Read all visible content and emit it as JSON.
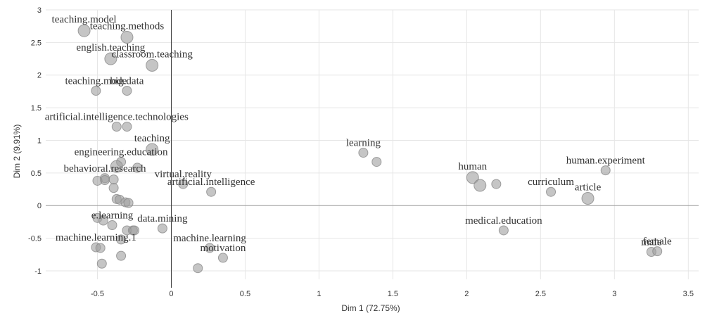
{
  "chart_data": {
    "type": "scatter",
    "xlabel": "Dim 1 (72.75%)",
    "ylabel": "Dim 2 (9.91%)",
    "xlim": [
      -0.85,
      3.57
    ],
    "ylim": [
      -1.13,
      3.0
    ],
    "xticks": [
      "-0.5",
      "0",
      "0.5",
      "1",
      "1.5",
      "2",
      "2.5",
      "3",
      "3.5"
    ],
    "yticks": [
      "3",
      "2.5",
      "2",
      "1.5",
      "1",
      "0.5",
      "0",
      "-0.5",
      "-1"
    ],
    "xtick_values": [
      -0.5,
      0,
      0.5,
      1,
      1.5,
      2,
      2.5,
      3,
      3.5
    ],
    "ytick_values": [
      3,
      2.5,
      2,
      1.5,
      1,
      0.5,
      0,
      -0.5,
      -1
    ],
    "grid": true,
    "points": [
      {
        "x": -0.59,
        "y": 2.68,
        "size": 2,
        "label": "teaching.model"
      },
      {
        "x": -0.3,
        "y": 2.58,
        "size": 2,
        "label": "teaching.methods"
      },
      {
        "x": -0.41,
        "y": 2.25,
        "size": 2,
        "label": "english.teaching"
      },
      {
        "x": -0.13,
        "y": 2.15,
        "size": 2,
        "label": "classroom.teaching"
      },
      {
        "x": -0.51,
        "y": 1.76,
        "size": 1,
        "label": "teaching.mode"
      },
      {
        "x": -0.3,
        "y": 1.76,
        "size": 1,
        "label": "big.data"
      },
      {
        "x": -0.37,
        "y": 1.21,
        "size": 1,
        "label": "artificial.intelligence.technologies"
      },
      {
        "x": -0.3,
        "y": 1.21,
        "size": 1,
        "label": ""
      },
      {
        "x": -0.13,
        "y": 0.86,
        "size": 2,
        "label": "teaching"
      },
      {
        "x": -0.34,
        "y": 0.67,
        "size": 1,
        "label": "engineering.education"
      },
      {
        "x": -0.37,
        "y": 0.6,
        "size": 2,
        "label": ""
      },
      {
        "x": -0.23,
        "y": 0.58,
        "size": 1,
        "label": ""
      },
      {
        "x": -0.45,
        "y": 0.42,
        "size": 1,
        "label": "behavioral.research"
      },
      {
        "x": -0.45,
        "y": 0.39,
        "size": 1,
        "label": ""
      },
      {
        "x": -0.5,
        "y": 0.38,
        "size": 1,
        "label": ""
      },
      {
        "x": -0.39,
        "y": 0.4,
        "size": 1,
        "label": ""
      },
      {
        "x": -0.39,
        "y": 0.27,
        "size": 1,
        "label": ""
      },
      {
        "x": 0.08,
        "y": 0.33,
        "size": 1,
        "label": "virtual.reality"
      },
      {
        "x": 0.27,
        "y": 0.21,
        "size": 1,
        "label": "artificial.intelligence"
      },
      {
        "x": -0.37,
        "y": 0.1,
        "size": 1,
        "label": ""
      },
      {
        "x": -0.35,
        "y": 0.09,
        "size": 1,
        "label": ""
      },
      {
        "x": -0.31,
        "y": 0.05,
        "size": 1,
        "label": ""
      },
      {
        "x": -0.29,
        "y": 0.04,
        "size": 1,
        "label": ""
      },
      {
        "x": -0.5,
        "y": -0.19,
        "size": 1,
        "label": ""
      },
      {
        "x": -0.46,
        "y": -0.23,
        "size": 1,
        "label": ""
      },
      {
        "x": -0.4,
        "y": -0.3,
        "size": 1,
        "label": "e.learning"
      },
      {
        "x": -0.3,
        "y": -0.38,
        "size": 1,
        "label": ""
      },
      {
        "x": -0.26,
        "y": -0.38,
        "size": 1,
        "label": ""
      },
      {
        "x": -0.25,
        "y": -0.38,
        "size": 1,
        "label": ""
      },
      {
        "x": -0.06,
        "y": -0.35,
        "size": 1,
        "label": "data.mining"
      },
      {
        "x": -0.34,
        "y": -0.52,
        "size": 1,
        "label": ""
      },
      {
        "x": -0.51,
        "y": -0.64,
        "size": 1,
        "label": "machine.learning.1"
      },
      {
        "x": -0.48,
        "y": -0.65,
        "size": 1,
        "label": ""
      },
      {
        "x": -0.34,
        "y": -0.77,
        "size": 1,
        "label": ""
      },
      {
        "x": -0.47,
        "y": -0.89,
        "size": 1,
        "label": ""
      },
      {
        "x": 0.26,
        "y": -0.65,
        "size": 1,
        "label": "machine.learning"
      },
      {
        "x": 0.35,
        "y": -0.8,
        "size": 1,
        "label": "motivation"
      },
      {
        "x": 0.18,
        "y": -0.96,
        "size": 1,
        "label": ""
      },
      {
        "x": 1.3,
        "y": 0.81,
        "size": 1,
        "label": "learning"
      },
      {
        "x": 1.39,
        "y": 0.67,
        "size": 1,
        "label": ""
      },
      {
        "x": 2.04,
        "y": 0.43,
        "size": 2,
        "label": "human"
      },
      {
        "x": 2.09,
        "y": 0.31,
        "size": 2,
        "label": ""
      },
      {
        "x": 2.2,
        "y": 0.33,
        "size": 1,
        "label": ""
      },
      {
        "x": 2.57,
        "y": 0.21,
        "size": 1,
        "label": "curriculum"
      },
      {
        "x": 2.82,
        "y": 0.11,
        "size": 2,
        "label": "article"
      },
      {
        "x": 2.94,
        "y": 0.54,
        "size": 1,
        "label": "human.experiment"
      },
      {
        "x": 2.25,
        "y": -0.38,
        "size": 1,
        "label": "medical.education"
      },
      {
        "x": 3.25,
        "y": -0.71,
        "size": 1,
        "label": "male"
      },
      {
        "x": 3.29,
        "y": -0.7,
        "size": 1,
        "label": "female"
      }
    ]
  }
}
